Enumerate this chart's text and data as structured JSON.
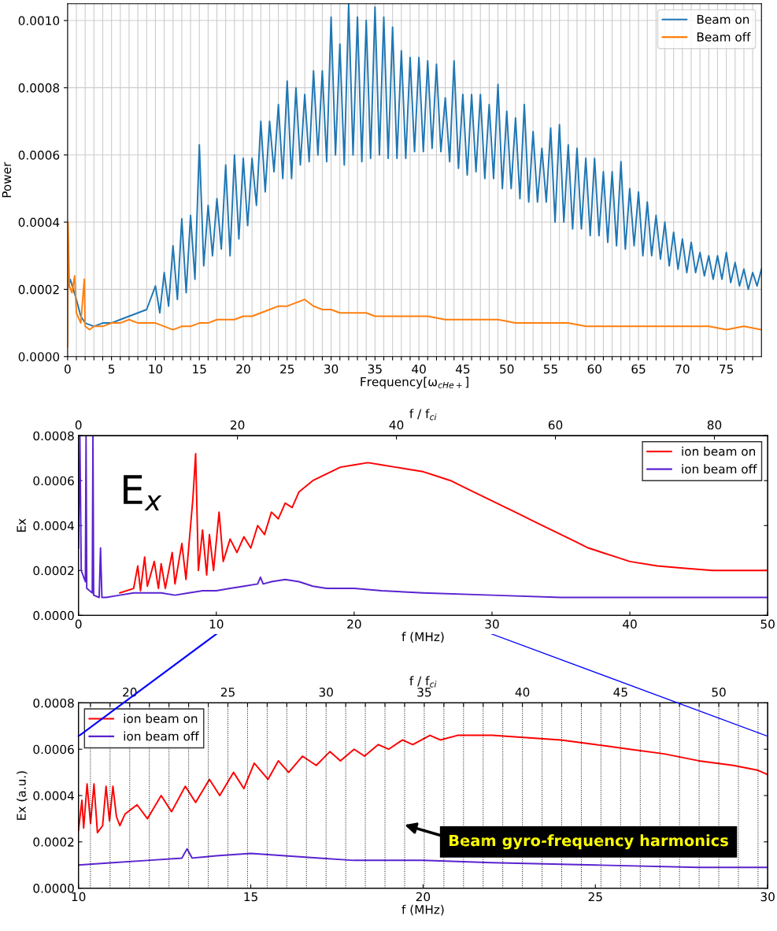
{
  "chart_data": [
    {
      "type": "line",
      "xlabel": "Frequency[ω$_{cHe+}$]",
      "ylabel": "Power",
      "xlim": [
        0,
        79
      ],
      "ylim": [
        0,
        0.00105
      ],
      "xticks": [
        0,
        {
          "value": 1,
          "label": null
        },
        {
          "value": 2,
          "label": null
        },
        {
          "value": 3,
          "label": null
        },
        {
          "value": 4,
          "label": null
        },
        5,
        {
          "value": 6,
          "label": null
        },
        {
          "value": 7,
          "label": null
        },
        {
          "value": 8,
          "label": null
        },
        {
          "value": 9,
          "label": null
        },
        10,
        {
          "value": 11,
          "label": null
        },
        {
          "value": 12,
          "label": null
        },
        {
          "value": 13,
          "label": null
        },
        {
          "value": 14,
          "label": null
        },
        15,
        {
          "value": 16,
          "label": null
        },
        {
          "value": 17,
          "label": null
        },
        {
          "value": 18,
          "label": null
        },
        {
          "value": 19,
          "label": null
        },
        20,
        {
          "value": 21,
          "label": null
        },
        {
          "value": 22,
          "label": null
        },
        {
          "value": 23,
          "label": null
        },
        {
          "value": 24,
          "label": null
        },
        25,
        {
          "value": 26,
          "label": null
        },
        {
          "value": 27,
          "label": null
        },
        {
          "value": 28,
          "label": null
        },
        {
          "value": 29,
          "label": null
        },
        30,
        {
          "value": 31,
          "label": null
        },
        {
          "value": 32,
          "label": null
        },
        {
          "value": 33,
          "label": null
        },
        {
          "value": 34,
          "label": null
        },
        35,
        {
          "value": 36,
          "label": null
        },
        {
          "value": 37,
          "label": null
        },
        {
          "value": 38,
          "label": null
        },
        {
          "value": 39,
          "label": null
        },
        40,
        {
          "value": 41,
          "label": null
        },
        {
          "value": 42,
          "label": null
        },
        {
          "value": 43,
          "label": null
        },
        {
          "value": 44,
          "label": null
        },
        45,
        {
          "value": 46,
          "label": null
        },
        {
          "value": 47,
          "label": null
        },
        {
          "value": 48,
          "label": null
        },
        {
          "value": 49,
          "label": null
        },
        50,
        {
          "value": 51,
          "label": null
        },
        {
          "value": 52,
          "label": null
        },
        {
          "value": 53,
          "label": null
        },
        {
          "value": 54,
          "label": null
        },
        55,
        {
          "value": 56,
          "label": null
        },
        {
          "value": 57,
          "label": null
        },
        {
          "value": 58,
          "label": null
        },
        {
          "value": 59,
          "label": null
        },
        60,
        {
          "value": 61,
          "label": null
        },
        {
          "value": 62,
          "label": null
        },
        {
          "value": 63,
          "label": null
        },
        {
          "value": 64,
          "label": null
        },
        65,
        {
          "value": 66,
          "label": null
        },
        {
          "value": 67,
          "label": null
        },
        {
          "value": 68,
          "label": null
        },
        {
          "value": 69,
          "label": null
        },
        70,
        {
          "value": 71,
          "label": null
        },
        {
          "value": 72,
          "label": null
        },
        {
          "value": 73,
          "label": null
        },
        {
          "value": 74,
          "label": null
        },
        75,
        {
          "value": 76,
          "label": null
        },
        {
          "value": 77,
          "label": null
        },
        {
          "value": 78,
          "label": null
        }
      ],
      "yticks": [
        {
          "value": 0,
          "label": "0.0000"
        },
        {
          "value": 0.0002,
          "label": "0.0002"
        },
        {
          "value": 0.0004,
          "label": "0.0004"
        },
        {
          "value": 0.0006,
          "label": "0.0006"
        },
        {
          "value": 0.0008,
          "label": "0.0008"
        },
        {
          "value": 0.001,
          "label": "0.0010"
        }
      ],
      "grid": true,
      "legend": "top right",
      "series": [
        {
          "name": "Beam on",
          "color": "#1f77b4",
          "x": [
            0,
            0.3,
            1,
            1.5,
            2,
            3,
            4,
            5,
            6,
            7,
            8,
            9,
            10,
            10.5,
            11,
            11.5,
            12,
            12.5,
            13,
            13.5,
            14,
            14.5,
            15,
            15.5,
            16,
            16.5,
            17,
            17.5,
            18,
            18.5,
            19,
            19.5,
            20,
            20.5,
            21,
            21.5,
            22,
            22.5,
            23,
            23.5,
            24,
            24.5,
            25,
            25.5,
            26,
            26.5,
            27,
            27.5,
            28,
            28.5,
            29,
            29.5,
            30,
            30.5,
            31,
            31.5,
            32,
            32.5,
            33,
            33.5,
            34,
            34.5,
            35,
            35.5,
            36,
            36.5,
            37,
            37.5,
            38,
            38.5,
            39,
            39.5,
            40,
            40.5,
            41,
            41.5,
            42,
            42.5,
            43,
            43.5,
            44,
            44.5,
            45,
            45.5,
            46,
            46.5,
            47,
            47.5,
            48,
            48.5,
            49,
            49.5,
            50,
            50.5,
            51,
            51.5,
            52,
            52.5,
            53,
            53.5,
            54,
            54.5,
            55,
            55.5,
            56,
            56.5,
            57,
            57.5,
            58,
            58.5,
            59,
            59.5,
            60,
            60.5,
            61,
            61.5,
            62,
            62.5,
            63,
            63.5,
            64,
            64.5,
            65,
            65.5,
            66,
            66.5,
            67,
            67.5,
            68,
            68.5,
            69,
            69.5,
            70,
            70.5,
            71,
            71.5,
            72,
            72.5,
            73,
            73.5,
            74,
            74.5,
            75,
            75.5,
            76,
            76.5,
            77,
            77.5,
            78,
            78.5,
            79
          ],
          "values": [
            0.0002,
            0.00023,
            0.00017,
            0.00012,
            0.0001,
            9e-05,
            0.0001,
            0.0001,
            0.00011,
            0.00012,
            0.00013,
            0.00014,
            0.00021,
            0.00013,
            0.00025,
            0.00015,
            0.00033,
            0.00017,
            0.00041,
            0.00019,
            0.00042,
            0.00023,
            0.00063,
            0.00027,
            0.00045,
            0.0003,
            0.00047,
            0.00032,
            0.00057,
            0.0003,
            0.0006,
            0.00035,
            0.00059,
            0.00039,
            0.00059,
            0.00045,
            0.0007,
            0.00049,
            0.0007,
            0.00055,
            0.00075,
            0.00053,
            0.00082,
            0.00053,
            0.0008,
            0.00057,
            0.00078,
            0.00058,
            0.00085,
            0.0006,
            0.00085,
            0.00058,
            0.00101,
            0.0006,
            0.00093,
            0.00057,
            0.00105,
            0.0006,
            0.00101,
            0.00058,
            0.001,
            0.00059,
            0.00104,
            0.0006,
            0.00101,
            0.00059,
            0.00098,
            0.00059,
            0.00091,
            0.00059,
            0.00089,
            0.00061,
            0.00089,
            0.00061,
            0.00088,
            0.00062,
            0.00087,
            0.00061,
            0.00077,
            0.00058,
            0.00088,
            0.00056,
            0.00078,
            0.00054,
            0.00078,
            0.00055,
            0.00078,
            0.00053,
            0.00075,
            0.00053,
            0.00081,
            0.0005,
            0.00073,
            0.0005,
            0.00071,
            0.00047,
            0.00075,
            0.00046,
            0.00067,
            0.00046,
            0.00062,
            0.00046,
            0.00068,
            0.0004,
            0.00069,
            0.0004,
            0.00063,
            0.00038,
            0.00062,
            0.00038,
            0.00059,
            0.00036,
            0.00059,
            0.00036,
            0.00055,
            0.00034,
            0.00055,
            0.00033,
            0.00058,
            0.00032,
            0.0005,
            0.00033,
            0.00049,
            0.0003,
            0.00046,
            0.0003,
            0.00042,
            0.00029,
            0.0004,
            0.00027,
            0.00037,
            0.00026,
            0.00035,
            0.00025,
            0.00034,
            0.00025,
            0.00031,
            0.00024,
            0.0003,
            0.00023,
            0.0003,
            0.00023,
            0.00031,
            0.00022,
            0.00028,
            0.00021,
            0.00026,
            0.0002,
            0.00025,
            0.00021,
            0.00026
          ]
        },
        {
          "name": "Beam off",
          "color": "#ff7f0e",
          "x": [
            0,
            0.05,
            0.2,
            0.5,
            0.8,
            1,
            1.5,
            1.9,
            2,
            2.5,
            3,
            4,
            5,
            6,
            7,
            8,
            9,
            10,
            11,
            12,
            13,
            14,
            15,
            16,
            17,
            18,
            19,
            20,
            21,
            22,
            23,
            24,
            25,
            26,
            27,
            28,
            29,
            30,
            31,
            32,
            33,
            34,
            35,
            37,
            39,
            41,
            43,
            45,
            47,
            49,
            51,
            53,
            55,
            57,
            59,
            61,
            63,
            65,
            67,
            69,
            71,
            73,
            75,
            77,
            79
          ],
          "values": [
            3e-05,
            0.0004,
            0.00021,
            0.00019,
            0.00024,
            0.00013,
            0.0001,
            0.00023,
            9e-05,
            8e-05,
            9e-05,
            9e-05,
            0.0001,
            0.0001,
            0.00011,
            0.0001,
            0.0001,
            0.0001,
            9e-05,
            8e-05,
            9e-05,
            9e-05,
            0.0001,
            0.0001,
            0.00011,
            0.00011,
            0.00011,
            0.00012,
            0.00012,
            0.00013,
            0.00014,
            0.00015,
            0.00015,
            0.00016,
            0.00017,
            0.00015,
            0.00014,
            0.00014,
            0.00013,
            0.00013,
            0.00013,
            0.00013,
            0.00012,
            0.00012,
            0.00012,
            0.00012,
            0.00011,
            0.00011,
            0.00011,
            0.00011,
            0.0001,
            0.0001,
            0.0001,
            0.0001,
            9e-05,
            9e-05,
            9e-05,
            9e-05,
            9e-05,
            9e-05,
            9e-05,
            9e-05,
            8e-05,
            9e-05,
            8e-05
          ]
        }
      ]
    },
    {
      "type": "line",
      "xlabel": "f (MHz)",
      "ylabel": "Ex",
      "x2label": "f / f$_{ci}$",
      "xlim": [
        0,
        50
      ],
      "xticks": [
        0,
        10,
        20,
        30,
        40,
        50
      ],
      "x2lim": [
        0,
        86.7
      ],
      "x2ticks": [
        0,
        20,
        40,
        60,
        80
      ],
      "ylim": [
        0,
        0.0008
      ],
      "yticks": [
        {
          "value": 0,
          "label": "0.0000"
        },
        {
          "value": 0.0002,
          "label": "0.0002"
        },
        {
          "value": 0.0004,
          "label": "0.0004"
        },
        {
          "value": 0.0006,
          "label": "0.0006"
        },
        {
          "value": 0.0008,
          "label": "0.0008"
        }
      ],
      "legend": "top right",
      "annotations": [
        "E$_{x}$"
      ],
      "series": [
        {
          "name": "ion beam on",
          "color": "#ff0000",
          "x": [
            3,
            4,
            4.3,
            4.5,
            4.8,
            5,
            5.5,
            5.8,
            6,
            6.3,
            6.8,
            7,
            7.5,
            7.8,
            8.3,
            8.5,
            8.7,
            9,
            9.3,
            9.5,
            9.8,
            10.2,
            10.5,
            11,
            11.5,
            12,
            12.5,
            13,
            13.5,
            14,
            14.5,
            15,
            15.5,
            16,
            17,
            18,
            19,
            20,
            21,
            22,
            23,
            24,
            25,
            26,
            27,
            28,
            29,
            30,
            31,
            32,
            33,
            34,
            35,
            36,
            37,
            38,
            39,
            40,
            42,
            44,
            46,
            48,
            50
          ],
          "values": [
            0.0001,
            0.00012,
            0.00022,
            0.00011,
            0.00026,
            0.00013,
            0.00024,
            0.00012,
            0.00023,
            0.00012,
            0.00028,
            0.00014,
            0.00032,
            0.00016,
            0.00052,
            0.00072,
            0.0002,
            0.00038,
            0.00018,
            0.00036,
            0.0002,
            0.00046,
            0.00024,
            0.00034,
            0.00028,
            0.00035,
            0.0003,
            0.0004,
            0.00036,
            0.00046,
            0.00043,
            0.0005,
            0.00048,
            0.00055,
            0.0006,
            0.00063,
            0.00066,
            0.00067,
            0.00068,
            0.00067,
            0.00066,
            0.00065,
            0.00064,
            0.00062,
            0.0006,
            0.00057,
            0.00054,
            0.00051,
            0.00048,
            0.00045,
            0.00042,
            0.00039,
            0.00036,
            0.00033,
            0.0003,
            0.00028,
            0.00026,
            0.00024,
            0.00022,
            0.00021,
            0.0002,
            0.0002,
            0.0002
          ]
        },
        {
          "name": "ion beam off",
          "color": "#5a23d0",
          "x": [
            0,
            0.1,
            0.2,
            0.5,
            0.55,
            0.6,
            1,
            1.05,
            1.1,
            1.5,
            1.6,
            1.7,
            2,
            3,
            4,
            5,
            6,
            7,
            8,
            9,
            10,
            11,
            12,
            13,
            13.2,
            13.4,
            14,
            15,
            16,
            17,
            18,
            20,
            22,
            25,
            30,
            35,
            40,
            45,
            50
          ],
          "values": [
            0.0003,
            0.0008,
            0.0002,
            0.00015,
            0.0008,
            0.00012,
            0.0001,
            0.0008,
            9e-05,
            8e-05,
            0.0003,
            8e-05,
            8e-05,
            9e-05,
            0.0001,
            0.0001,
            0.0001,
            9e-05,
            0.0001,
            0.00011,
            0.00011,
            0.00012,
            0.00013,
            0.00014,
            0.00017,
            0.00014,
            0.00015,
            0.00016,
            0.00015,
            0.00013,
            0.00012,
            0.00012,
            0.00011,
            0.0001,
            9e-05,
            8e-05,
            8e-05,
            8e-05,
            8e-05
          ]
        }
      ]
    },
    {
      "type": "line",
      "xlabel": "f (MHz)",
      "ylabel": "Ex (a.u.)",
      "x2label": "f / f$_{ci}$",
      "xlim": [
        10,
        30
      ],
      "xticks": [
        10,
        15,
        20,
        25,
        30
      ],
      "x2lim": [
        17.39,
        52.49
      ],
      "x2ticks": [
        {
          "value": 18,
          "label": null
        },
        {
          "value": 19,
          "label": null
        },
        20,
        {
          "value": 21,
          "label": null
        },
        {
          "value": 22,
          "label": null
        },
        {
          "value": 23,
          "label": null
        },
        {
          "value": 24,
          "label": null
        },
        25,
        {
          "value": 26,
          "label": null
        },
        {
          "value": 27,
          "label": null
        },
        {
          "value": 28,
          "label": null
        },
        {
          "value": 29,
          "label": null
        },
        30,
        {
          "value": 31,
          "label": null
        },
        {
          "value": 32,
          "label": null
        },
        {
          "value": 33,
          "label": null
        },
        {
          "value": 34,
          "label": null
        },
        35,
        {
          "value": 36,
          "label": null
        },
        {
          "value": 37,
          "label": null
        },
        {
          "value": 38,
          "label": null
        },
        {
          "value": 39,
          "label": null
        },
        40,
        {
          "value": 41,
          "label": null
        },
        {
          "value": 42,
          "label": null
        },
        {
          "value": 43,
          "label": null
        },
        {
          "value": 44,
          "label": null
        },
        45,
        {
          "value": 46,
          "label": null
        },
        {
          "value": 47,
          "label": null
        },
        {
          "value": 48,
          "label": null
        },
        {
          "value": 49,
          "label": null
        },
        50,
        {
          "value": 51,
          "label": null
        },
        {
          "value": 52,
          "label": null
        }
      ],
      "ylim": [
        0,
        0.0008
      ],
      "yticks": [
        {
          "value": 0,
          "label": "0.0000"
        },
        {
          "value": 0.0002,
          "label": "0.0002"
        },
        {
          "value": 0.0004,
          "label": "0.0004"
        },
        {
          "value": 0.0006,
          "label": "0.0006"
        },
        {
          "value": 0.0008,
          "label": "0.0008"
        }
      ],
      "grid": "x",
      "legend": "top left",
      "annotations": [
        "Beam gyro-frequency harmonics"
      ],
      "series": [
        {
          "name": "ion beam on",
          "color": "#ff0000",
          "x": [
            10,
            10.1,
            10.15,
            10.25,
            10.35,
            10.45,
            10.55,
            10.7,
            10.8,
            10.9,
            11,
            11.1,
            11.2,
            11.35,
            11.7,
            12.0,
            12.4,
            12.7,
            13.1,
            13.4,
            13.8,
            14.1,
            14.5,
            14.8,
            15.1,
            15.5,
            15.8,
            16.1,
            16.5,
            16.9,
            17.3,
            17.6,
            18.0,
            18.3,
            18.7,
            19.0,
            19.4,
            19.7,
            20.2,
            20.5,
            21,
            22,
            23,
            24,
            25,
            26,
            27,
            28,
            29,
            29.7,
            30
          ],
          "values": [
            0.00025,
            0.00038,
            0.00026,
            0.00045,
            0.00028,
            0.00045,
            0.00024,
            0.00027,
            0.00044,
            0.00029,
            0.00044,
            0.00031,
            0.00027,
            0.00032,
            0.00036,
            0.0003,
            0.0004,
            0.00033,
            0.00044,
            0.00037,
            0.00047,
            0.0004,
            0.0005,
            0.00043,
            0.00054,
            0.00047,
            0.00055,
            0.0005,
            0.00057,
            0.00053,
            0.00059,
            0.00055,
            0.0006,
            0.00057,
            0.00062,
            0.0006,
            0.00064,
            0.00062,
            0.00066,
            0.00064,
            0.00066,
            0.00066,
            0.00065,
            0.00064,
            0.00062,
            0.0006,
            0.00058,
            0.00055,
            0.00053,
            0.00051,
            0.00049
          ]
        },
        {
          "name": "ion beam off",
          "color": "#5a23d0",
          "x": [
            10,
            11,
            12,
            13,
            13.15,
            13.3,
            14,
            15,
            16,
            17,
            18,
            20,
            22,
            25,
            28,
            30
          ],
          "values": [
            0.0001,
            0.00011,
            0.00012,
            0.00013,
            0.00017,
            0.00013,
            0.00014,
            0.00015,
            0.00014,
            0.00013,
            0.00012,
            0.00012,
            0.00011,
            0.0001,
            9e-05,
            9e-05
          ]
        }
      ]
    }
  ]
}
